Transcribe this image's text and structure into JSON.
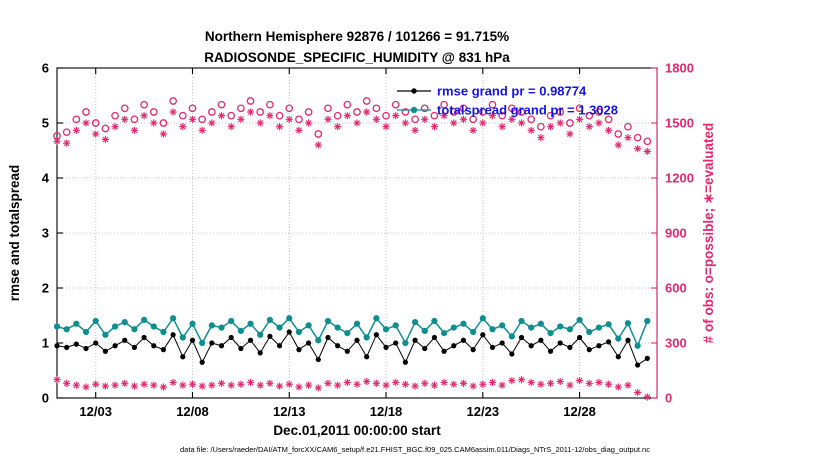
{
  "title": {
    "line1": "Northern Hemisphere 92876 / 101266 = 91.715%",
    "line2": "RADIOSONDE_SPECIFIC_HUMIDITY @ 831 hPa"
  },
  "footer": {
    "text": "data file: /Users/raeder/DAI/ATM_forcXX/CAM6_setup/f.e21.FHIST_BGC.f09_025.CAM6assim.011/Diags_NTrS_2011-12/obs_diag_output.nc"
  },
  "chart_data": {
    "type": "line",
    "title": "Northern Hemisphere 92876 / 101266 = 91.715% — RADIOSONDE_SPECIFIC_HUMIDITY @ 831 hPa",
    "xlabel": "Dec.01,2011 00:00:00 start",
    "ylabel_left": "rmse and totalspread",
    "ylabel_right": "# of obs: o=possible; ∗=evaluated",
    "xlim": [
      1,
      32
    ],
    "ylim_left": [
      0,
      6
    ],
    "ylim_right": [
      0,
      1800
    ],
    "yticks_left": [
      0,
      1,
      2,
      3,
      4,
      5,
      6
    ],
    "yticks_right": [
      0,
      300,
      600,
      900,
      1200,
      1500,
      1800
    ],
    "xticks": [
      {
        "value": 3,
        "label": "12/03"
      },
      {
        "value": 8,
        "label": "12/08"
      },
      {
        "value": 13,
        "label": "12/13"
      },
      {
        "value": 18,
        "label": "12/18"
      },
      {
        "value": 23,
        "label": "12/23"
      },
      {
        "value": 28,
        "label": "12/28"
      }
    ],
    "grid": "dotted",
    "legend_position": "top-center-inside",
    "legend": [
      {
        "label": "rmse grand pr = 0.98774",
        "color": "#000000",
        "marker": "filled-dot"
      },
      {
        "label": "totalspread grand pr = 1.3028",
        "color": "#0e8e8e",
        "marker": "filled-dot"
      }
    ],
    "colors": {
      "obs_pink": "#e2286e",
      "teal": "#0e8e8e",
      "rmse_black": "#000000",
      "legend_text": "#1414e6"
    },
    "x": [
      1,
      1.5,
      2,
      2.5,
      3,
      3.5,
      4,
      4.5,
      5,
      5.5,
      6,
      6.5,
      7,
      7.5,
      8,
      8.5,
      9,
      9.5,
      10,
      10.5,
      11,
      11.5,
      12,
      12.5,
      13,
      13.5,
      14,
      14.5,
      15,
      15.5,
      16,
      16.5,
      17,
      17.5,
      18,
      18.5,
      19,
      19.5,
      20,
      20.5,
      21,
      21.5,
      22,
      22.5,
      23,
      23.5,
      24,
      24.5,
      25,
      25.5,
      26,
      26.5,
      27,
      27.5,
      28,
      28.5,
      29,
      29.5,
      30,
      30.5,
      31,
      31.5
    ],
    "series": [
      {
        "name": "possible_obs",
        "axis": "right",
        "marker": "open-circle",
        "color": "#e2286e",
        "line": false,
        "r": 3.2,
        "lw": 1.3,
        "values": [
          1430,
          1450,
          1520,
          1560,
          1500,
          1470,
          1540,
          1580,
          1520,
          1600,
          1560,
          1500,
          1620,
          1540,
          1580,
          1520,
          1560,
          1600,
          1540,
          1580,
          1620,
          1560,
          1600,
          1540,
          1580,
          1520,
          1560,
          1440,
          1580,
          1540,
          1600,
          1560,
          1620,
          1580,
          1540,
          1600,
          1560,
          1520,
          1580,
          1540,
          1600,
          1560,
          1580,
          1520,
          1560,
          1600,
          1540,
          1580,
          1560,
          1520,
          1480,
          1540,
          1560,
          1500,
          1580,
          1540,
          1560,
          1520,
          1440,
          1480,
          1420,
          1400
        ]
      },
      {
        "name": "evaluated_obs",
        "axis": "right",
        "marker": "asterisk",
        "color": "#e2286e",
        "line": false,
        "r": 3.6,
        "lw": 1.1,
        "values": [
          1400,
          1390,
          1460,
          1500,
          1440,
          1410,
          1480,
          1520,
          1460,
          1540,
          1500,
          1440,
          1560,
          1480,
          1520,
          1460,
          1500,
          1540,
          1480,
          1520,
          1560,
          1500,
          1540,
          1480,
          1520,
          1460,
          1500,
          1380,
          1520,
          1480,
          1540,
          1500,
          1560,
          1520,
          1480,
          1540,
          1500,
          1460,
          1520,
          1480,
          1540,
          1500,
          1520,
          1460,
          1500,
          1540,
          1480,
          1520,
          1500,
          1460,
          1420,
          1480,
          1500,
          1440,
          1520,
          1480,
          1500,
          1460,
          1380,
          1420,
          1360,
          1345
        ]
      },
      {
        "name": "evaluated_obs_lower_band",
        "axis": "right",
        "marker": "asterisk",
        "color": "#e2286e",
        "line": false,
        "r": 3.6,
        "lw": 1.1,
        "values": [
          100,
          80,
          70,
          60,
          75,
          65,
          70,
          80,
          65,
          75,
          70,
          60,
          85,
          70,
          75,
          65,
          70,
          80,
          70,
          75,
          85,
          70,
          80,
          65,
          75,
          60,
          70,
          55,
          80,
          70,
          85,
          75,
          90,
          80,
          70,
          85,
          75,
          65,
          80,
          70,
          85,
          75,
          80,
          65,
          75,
          85,
          70,
          95,
          100,
          85,
          75,
          80,
          90,
          70,
          95,
          80,
          85,
          75,
          60,
          70,
          30,
          5
        ]
      },
      {
        "name": "totalspread",
        "axis": "left",
        "marker": "filled-dot",
        "color": "#0e8e8e",
        "line": true,
        "r": 3.1,
        "lw": 1.5,
        "values": [
          1.3,
          1.25,
          1.35,
          1.2,
          1.4,
          1.15,
          1.3,
          1.38,
          1.25,
          1.42,
          1.3,
          1.2,
          1.45,
          1.1,
          1.35,
          1.0,
          1.32,
          1.28,
          1.4,
          1.22,
          1.35,
          1.15,
          1.42,
          1.28,
          1.45,
          1.2,
          1.32,
          1.05,
          1.4,
          1.28,
          1.18,
          1.35,
          1.1,
          1.45,
          1.25,
          1.32,
          1.0,
          1.38,
          1.22,
          1.4,
          1.18,
          1.28,
          1.35,
          1.2,
          1.45,
          1.25,
          1.32,
          1.12,
          1.4,
          1.28,
          1.35,
          1.18,
          1.3,
          1.25,
          1.42,
          1.2,
          1.28,
          1.34,
          1.08,
          1.36,
          0.95,
          1.4
        ]
      },
      {
        "name": "rmse",
        "axis": "left",
        "marker": "filled-dot",
        "color": "#000000",
        "line": true,
        "r": 2.6,
        "lw": 1.0,
        "values": [
          0.95,
          0.92,
          0.98,
          0.9,
          1.0,
          0.85,
          0.95,
          1.05,
          0.92,
          1.1,
          0.95,
          0.88,
          1.15,
          0.75,
          1.05,
          0.65,
          1.0,
          0.95,
          1.1,
          0.9,
          1.05,
          0.82,
          1.12,
          0.95,
          1.2,
          0.88,
          1.0,
          0.7,
          1.1,
          0.95,
          0.85,
          1.05,
          0.75,
          1.15,
          0.92,
          1.0,
          0.65,
          1.05,
          0.9,
          1.1,
          0.85,
          0.95,
          1.05,
          0.88,
          1.15,
          0.92,
          1.0,
          0.8,
          1.1,
          0.95,
          1.05,
          0.85,
          1.0,
          0.92,
          1.1,
          0.88,
          0.95,
          1.02,
          0.75,
          1.05,
          0.6,
          0.72
        ]
      }
    ]
  }
}
